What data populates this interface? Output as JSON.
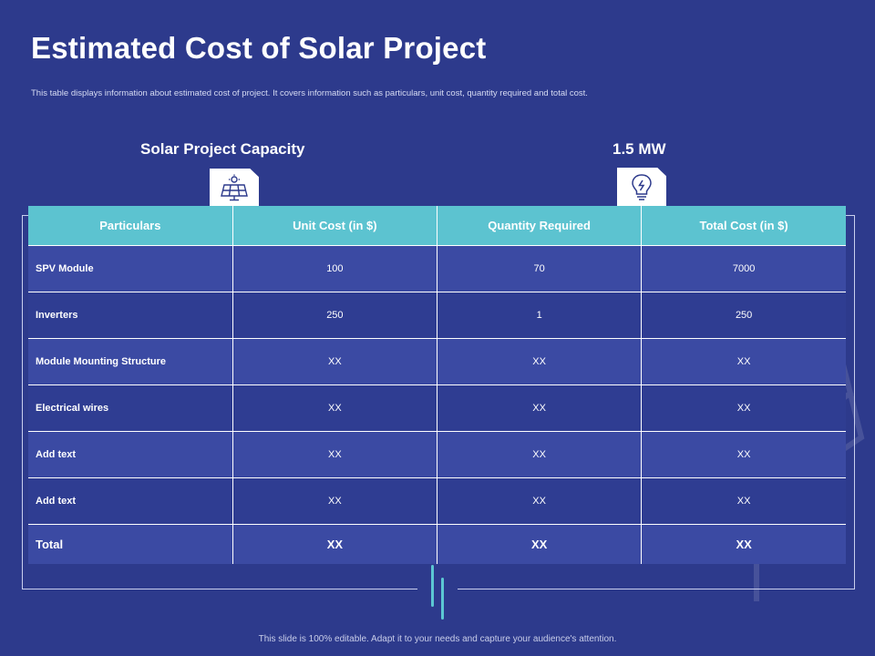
{
  "slide": {
    "title": "Estimated Cost of Solar Project",
    "subtitle": "This table displays information about estimated cost of project. It covers information such as particulars, unit cost, quantity required and total cost.",
    "capacity_label": "Solar Project Capacity",
    "capacity_value": "1.5 MW",
    "footer": "This slide is 100% editable. Adapt it to your needs and capture your audience's attention."
  },
  "icons": {
    "left": "solar-panel-icon",
    "right": "light-bulb-icon"
  },
  "colors": {
    "background": "#2d3a8c",
    "header": "#5cc3d0",
    "row_light": "#3b4aa3",
    "row_dark": "#2f3d92",
    "accent": "#5cc7d3"
  },
  "table": {
    "headers": [
      "Particulars",
      "Unit Cost (in $)",
      "Quantity Required",
      "Total Cost (in $)"
    ],
    "rows": [
      [
        "SPV Module",
        "100",
        "70",
        "7000"
      ],
      [
        "Inverters",
        "250",
        "1",
        "250"
      ],
      [
        "Module Mounting Structure",
        "XX",
        "XX",
        "XX"
      ],
      [
        "Electrical wires",
        "XX",
        "XX",
        "XX"
      ],
      [
        "Add text",
        "XX",
        "XX",
        "XX"
      ],
      [
        "Add text",
        "XX",
        "XX",
        "XX"
      ]
    ],
    "total": [
      "Total",
      "XX",
      "XX",
      "XX"
    ]
  }
}
